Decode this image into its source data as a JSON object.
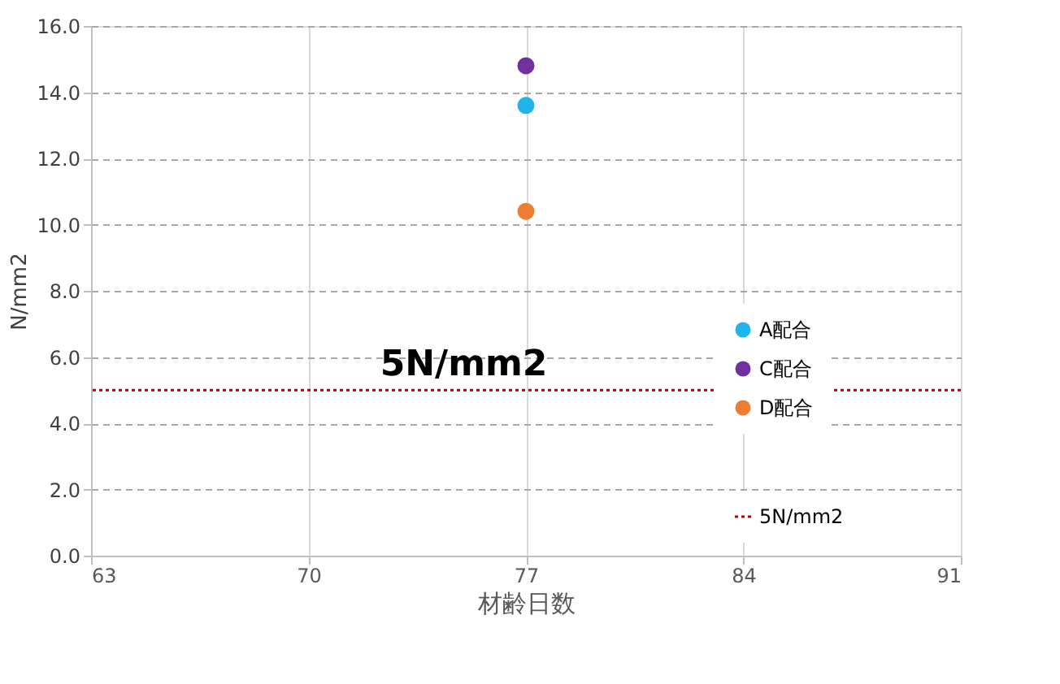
{
  "chart_data": {
    "type": "scatter",
    "xlabel": "材齢日数",
    "ylabel": "N/mm2",
    "x": [
      77
    ],
    "series": [
      {
        "name": "A配合",
        "color": "#1fb5ec",
        "values": [
          13.6
        ]
      },
      {
        "name": "C配合",
        "color": "#7030a0",
        "values": [
          14.8
        ]
      },
      {
        "name": "D配合",
        "color": "#ed7d31",
        "values": [
          10.4
        ]
      }
    ],
    "xlim": [
      63,
      91
    ],
    "xticks": [
      63,
      70,
      77,
      84,
      91
    ],
    "ylim": [
      0,
      16
    ],
    "yticks": [
      {
        "value": 0,
        "label": "0.0"
      },
      {
        "value": 2,
        "label": "2.0"
      },
      {
        "value": 4,
        "label": "4.0"
      },
      {
        "value": 6,
        "label": "6.0"
      },
      {
        "value": 8,
        "label": "8.0"
      },
      {
        "value": 10,
        "label": "10.0"
      },
      {
        "value": 12,
        "label": "12.0"
      },
      {
        "value": 14,
        "label": "14.0"
      },
      {
        "value": 16,
        "label": "16.0"
      }
    ],
    "ref_lines": [
      {
        "axis": "y",
        "value": 5,
        "label": "5N/mm2",
        "color": "#c00000",
        "line_style": "dotted"
      }
    ],
    "annotations": [
      {
        "text": "5N/mm2",
        "x": 75,
        "y": 5
      }
    ],
    "grid": true,
    "legend": "bottom right",
    "marker": "circle"
  }
}
